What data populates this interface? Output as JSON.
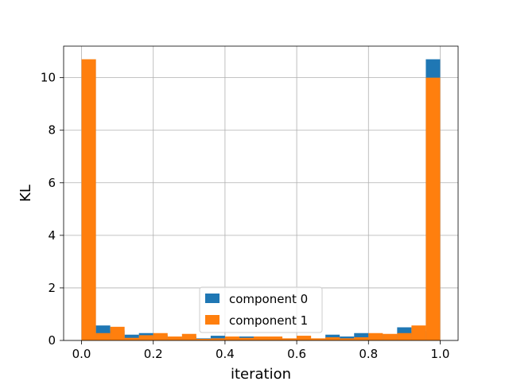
{
  "chart_data": {
    "type": "bar",
    "bin_width": 0.04,
    "bin_starts": [
      0.0,
      0.04,
      0.08,
      0.12,
      0.16,
      0.2,
      0.24,
      0.28,
      0.32,
      0.36,
      0.4,
      0.44,
      0.48,
      0.52,
      0.56,
      0.6,
      0.64,
      0.68,
      0.72,
      0.76,
      0.8,
      0.84,
      0.88,
      0.92,
      0.96
    ],
    "series": [
      {
        "name": "component 0",
        "color": "#1f77b4",
        "values": [
          10.7,
          0.57,
          0.38,
          0.22,
          0.28,
          0.2,
          0.1,
          0.15,
          0.08,
          0.18,
          0.08,
          0.15,
          0.12,
          0.12,
          0.06,
          0.1,
          0.06,
          0.22,
          0.15,
          0.28,
          0.25,
          0.22,
          0.5,
          0.35,
          10.7
        ]
      },
      {
        "name": "component 1",
        "color": "#ff7f0e",
        "values": [
          10.7,
          0.28,
          0.52,
          0.1,
          0.2,
          0.28,
          0.15,
          0.25,
          0.06,
          0.08,
          0.15,
          0.1,
          0.15,
          0.15,
          0.08,
          0.18,
          0.08,
          0.12,
          0.08,
          0.12,
          0.28,
          0.25,
          0.28,
          0.57,
          10.0
        ]
      }
    ],
    "xlabel": "iteration",
    "ylabel": "KL",
    "xlim": [
      -0.05,
      1.05
    ],
    "ylim": [
      0,
      11.2
    ],
    "xticks": [
      0.0,
      0.2,
      0.4,
      0.6,
      0.8,
      1.0
    ],
    "xtick_labels": [
      "0.0",
      "0.2",
      "0.4",
      "0.6",
      "0.8",
      "1.0"
    ],
    "yticks": [
      0,
      2,
      4,
      6,
      8,
      10
    ],
    "ytick_labels": [
      "0",
      "2",
      "4",
      "6",
      "8",
      "10"
    ],
    "grid": true,
    "legend_position": "lower-center"
  }
}
